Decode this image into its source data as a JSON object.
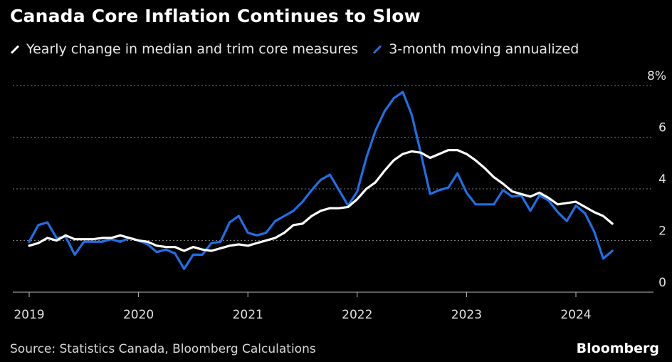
{
  "chart_data": {
    "type": "line",
    "title": "Canada Core Inflation Continues to Slow",
    "source": "Source: Statistics Canada, Bloomberg Calculations",
    "brand": "Bloomberg",
    "x_start": "2019-01",
    "x_ticks": [
      "2019",
      "2020",
      "2021",
      "2022",
      "2023",
      "2024"
    ],
    "y_ticks": [
      "8%",
      "6",
      "4",
      "2",
      "0"
    ],
    "ylim": [
      0,
      8
    ],
    "grid": true,
    "legend_position": "top-left",
    "series": [
      {
        "name": "Yearly change in median and trim core measures",
        "color": "#ffffff",
        "values": [
          1.8,
          1.9,
          2.1,
          2.0,
          2.2,
          2.05,
          2.05,
          2.05,
          2.1,
          2.1,
          2.2,
          2.1,
          2.0,
          1.95,
          1.8,
          1.75,
          1.75,
          1.6,
          1.75,
          1.65,
          1.6,
          1.7,
          1.8,
          1.85,
          1.8,
          1.9,
          2.0,
          2.1,
          2.3,
          2.6,
          2.65,
          2.95,
          3.15,
          3.25,
          3.25,
          3.3,
          3.6,
          4.0,
          4.25,
          4.7,
          5.1,
          5.35,
          5.45,
          5.4,
          5.2,
          5.35,
          5.5,
          5.5,
          5.35,
          5.1,
          4.8,
          4.45,
          4.2,
          3.9,
          3.8,
          3.7,
          3.85,
          3.65,
          3.4,
          3.45,
          3.5,
          3.3,
          3.1,
          2.95,
          2.65
        ]
      },
      {
        "name": "3-month moving annualized",
        "color": "#1f6fe5",
        "values": [
          1.95,
          2.6,
          2.7,
          2.1,
          2.15,
          1.45,
          1.95,
          1.95,
          1.95,
          2.05,
          1.95,
          2.1,
          2.0,
          1.85,
          1.55,
          1.65,
          1.5,
          0.9,
          1.45,
          1.45,
          1.9,
          1.95,
          2.7,
          2.95,
          2.3,
          2.2,
          2.3,
          2.75,
          2.95,
          3.15,
          3.5,
          3.95,
          4.35,
          4.55,
          3.95,
          3.35,
          3.9,
          5.2,
          6.25,
          7.0,
          7.5,
          7.75,
          6.85,
          5.35,
          3.8,
          3.95,
          4.05,
          4.6,
          3.85,
          3.4,
          3.4,
          3.4,
          3.95,
          3.7,
          3.75,
          3.15,
          3.75,
          3.55,
          3.1,
          2.75,
          3.35,
          3.05,
          2.35,
          1.3,
          1.6
        ]
      }
    ]
  }
}
